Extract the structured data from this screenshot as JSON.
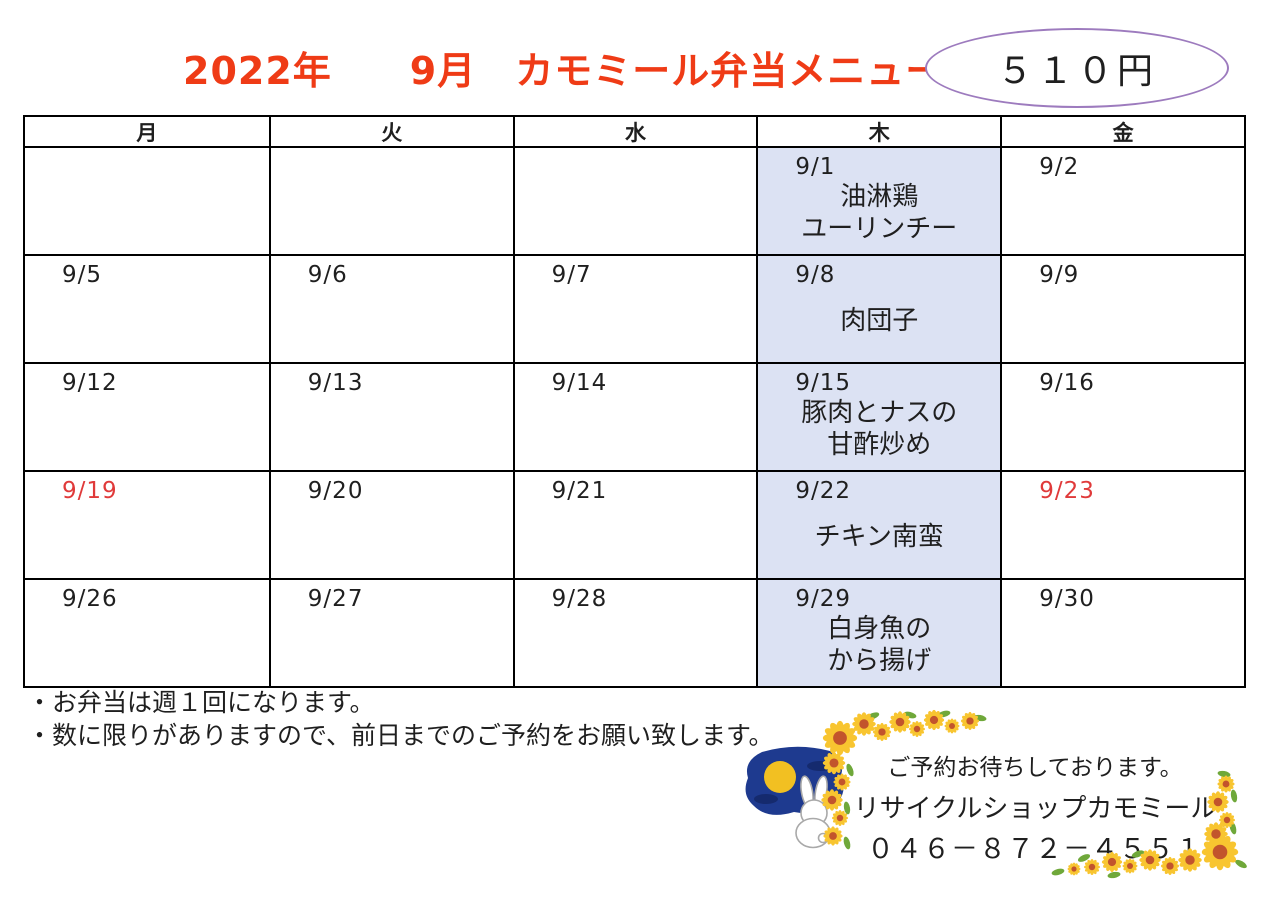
{
  "title": "2022年　　9月　カモミール弁当メニュー",
  "price_badge": "５１０円",
  "calendar": {
    "day_headers": [
      "月",
      "火",
      "水",
      "木",
      "金"
    ],
    "highlight_col": 3,
    "weeks": [
      [
        {
          "date": ""
        },
        {
          "date": ""
        },
        {
          "date": ""
        },
        {
          "date": "9/1",
          "menu": [
            "油淋鶏",
            "ユーリンチー"
          ]
        },
        {
          "date": "9/2"
        }
      ],
      [
        {
          "date": "9/5"
        },
        {
          "date": "9/6"
        },
        {
          "date": "9/7"
        },
        {
          "date": "9/8",
          "menu": [
            "肉団子"
          ]
        },
        {
          "date": "9/9"
        }
      ],
      [
        {
          "date": "9/12"
        },
        {
          "date": "9/13"
        },
        {
          "date": "9/14"
        },
        {
          "date": "9/15",
          "menu": [
            "豚肉とナスの",
            "甘酢炒め"
          ]
        },
        {
          "date": "9/16"
        }
      ],
      [
        {
          "date": "9/19",
          "holiday": true
        },
        {
          "date": "9/20"
        },
        {
          "date": "9/21"
        },
        {
          "date": "9/22",
          "menu": [
            "チキン南蛮"
          ]
        },
        {
          "date": "9/23",
          "holiday": true
        }
      ],
      [
        {
          "date": "9/26"
        },
        {
          "date": "9/27"
        },
        {
          "date": "9/28"
        },
        {
          "date": "9/29",
          "menu": [
            "白身魚の",
            "から揚げ"
          ]
        },
        {
          "date": "9/30"
        }
      ]
    ]
  },
  "notes": [
    "・お弁当は週１回になります。",
    "・数に限りがありますので、前日までのご予約をお願い致します。"
  ],
  "contact": {
    "line1": "ご予約お待ちしております。",
    "line2": "リサイクルショップカモミール",
    "phone": "０４６－８７２－４５５１"
  },
  "icons": [
    "rabbit-moon-illustration",
    "sunflower-corner-top-left",
    "sunflower-corner-bottom-right"
  ],
  "colors": {
    "title_red": "#ef3b16",
    "oval_purple": "#9d7bbe",
    "thursday_highlight": "#dce2f3",
    "holiday_red": "#e03a3a",
    "text": "#1f1f1f",
    "sunflower_petal": "#f8c530",
    "sunflower_center": "#c2542c",
    "leaf_green": "#6fa83a",
    "night_sky_blue": "#1e3a8f",
    "moon_yellow": "#f2c022"
  }
}
